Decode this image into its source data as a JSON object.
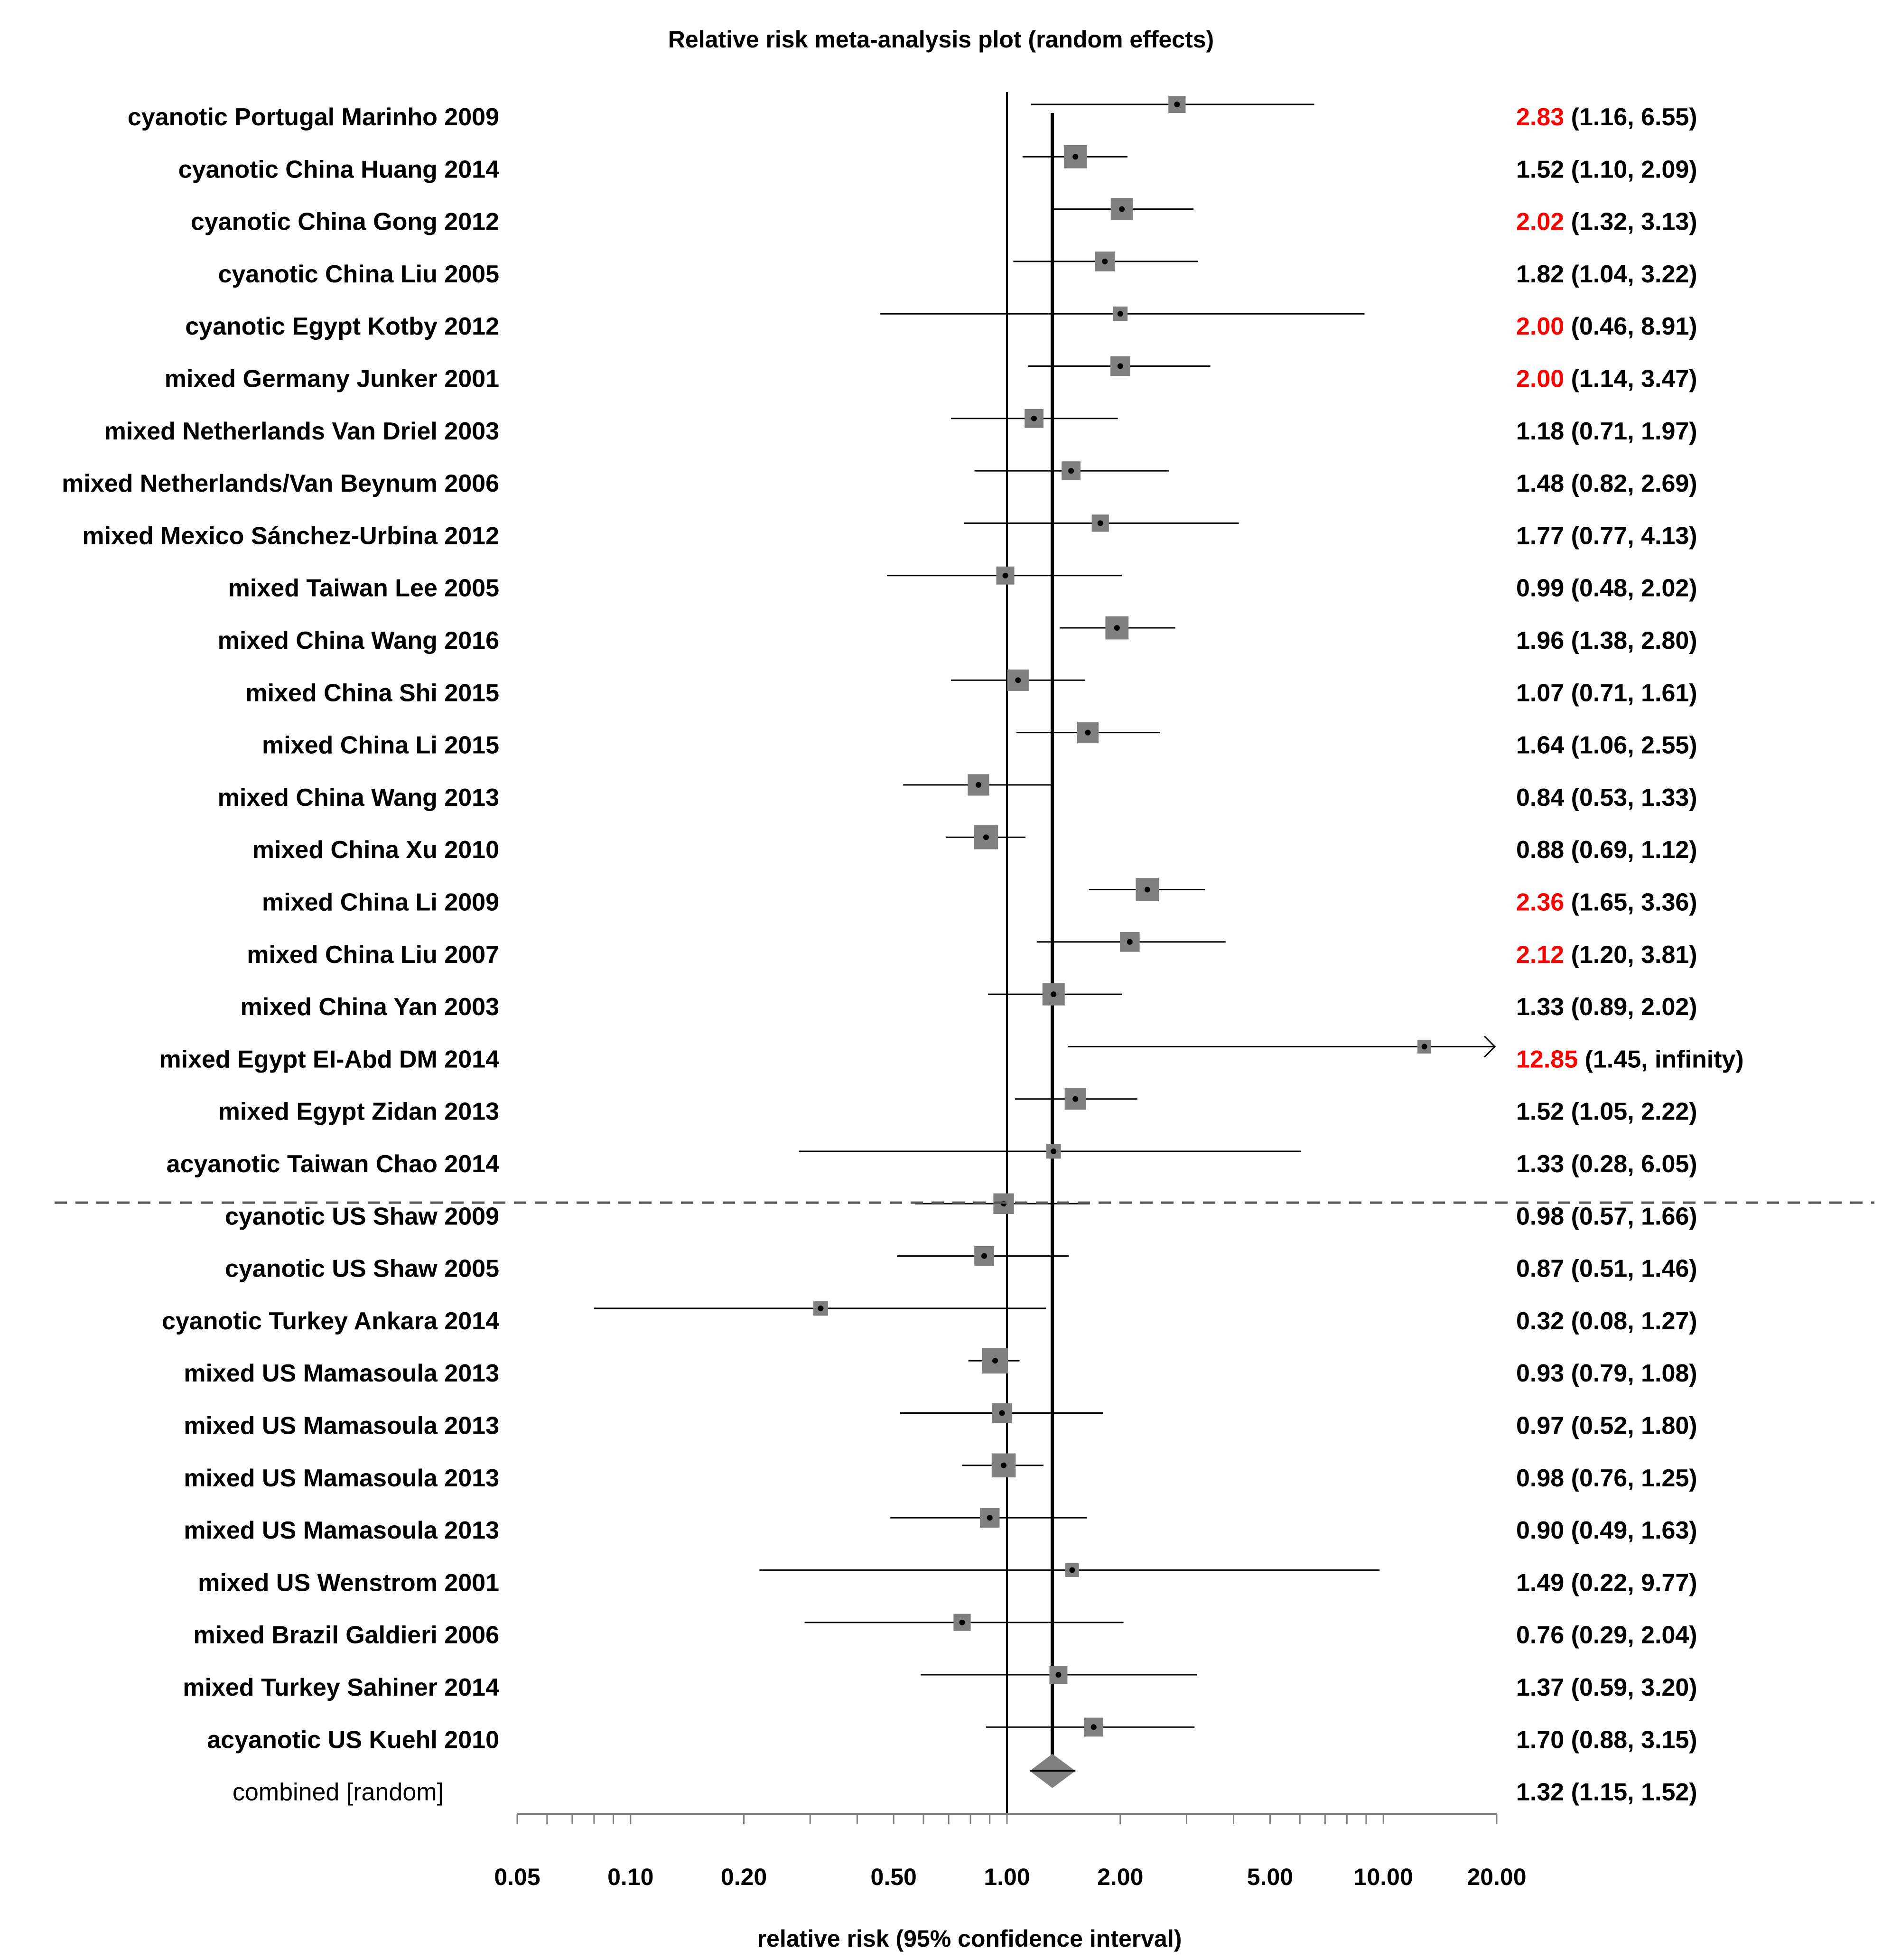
{
  "chart_data": {
    "type": "forest",
    "title": "Relative risk meta-analysis plot (random effects)",
    "xlabel": "relative risk (95% confidence interval)",
    "x_scale": "log",
    "xlim": [
      0.05,
      20
    ],
    "x_ticks": [
      {
        "value": 0.05,
        "label": "0.05"
      },
      {
        "value": 0.1,
        "label": "0.10"
      },
      {
        "value": 0.2,
        "label": "0.20"
      },
      {
        "value": 0.5,
        "label": "0.50"
      },
      {
        "value": 1,
        "label": "1.00"
      },
      {
        "value": 2,
        "label": "2.00"
      },
      {
        "value": 5,
        "label": "5.00"
      },
      {
        "value": 10,
        "label": "10.00"
      },
      {
        "value": 20,
        "label": "20.00"
      }
    ],
    "reference_line": 1,
    "pooled_line": 1.32,
    "colors": {
      "box": "#808080",
      "highlight": "#ff0000",
      "line": "#000000",
      "diamond": "#808080"
    },
    "separator_after_row": 21,
    "studies": [
      {
        "label": "cyanotic Portugal Marinho 2009",
        "rr": 2.83,
        "lo": 1.16,
        "hi": 6.55,
        "rr_text": "2.83",
        "ci_text": "(1.16, 6.55)",
        "highlight": true,
        "weight": 0.45
      },
      {
        "label": "cyanotic China Huang 2014",
        "rr": 1.52,
        "lo": 1.1,
        "hi": 2.09,
        "rr_text": "1.52",
        "ci_text": "(1.10, 2.09)",
        "highlight": false,
        "weight": 0.8
      },
      {
        "label": "cyanotic China Gong 2012",
        "rr": 2.02,
        "lo": 1.32,
        "hi": 3.13,
        "rr_text": "2.02",
        "ci_text": "(1.32, 3.13)",
        "highlight": true,
        "weight": 0.75
      },
      {
        "label": "cyanotic China Liu 2005",
        "rr": 1.82,
        "lo": 1.04,
        "hi": 3.22,
        "rr_text": "1.82",
        "ci_text": "(1.04, 3.22)",
        "highlight": false,
        "weight": 0.6
      },
      {
        "label": "cyanotic Egypt Kotby 2012",
        "rr": 2.0,
        "lo": 0.46,
        "hi": 8.91,
        "rr_text": "2.00",
        "ci_text": "(0.46, 8.91)",
        "highlight": true,
        "weight": 0.3
      },
      {
        "label": "mixed Germany Junker 2001",
        "rr": 2.0,
        "lo": 1.14,
        "hi": 3.47,
        "rr_text": "2.00",
        "ci_text": "(1.14, 3.47)",
        "highlight": true,
        "weight": 0.6
      },
      {
        "label": "mixed Netherlands Van Driel 2003",
        "rr": 1.18,
        "lo": 0.71,
        "hi": 1.97,
        "rr_text": "1.18",
        "ci_text": "(0.71, 1.97)",
        "highlight": false,
        "weight": 0.55
      },
      {
        "label": "mixed Netherlands/Van Beynum 2006",
        "rr": 1.48,
        "lo": 0.82,
        "hi": 2.69,
        "rr_text": "1.48",
        "ci_text": "(0.82, 2.69)",
        "highlight": false,
        "weight": 0.55
      },
      {
        "label": "mixed Mexico Sánchez-Urbina 2012",
        "rr": 1.77,
        "lo": 0.77,
        "hi": 4.13,
        "rr_text": "1.77",
        "ci_text": "(0.77, 4.13)",
        "highlight": false,
        "weight": 0.45
      },
      {
        "label": "mixed Taiwan Lee 2005",
        "rr": 0.99,
        "lo": 0.48,
        "hi": 2.02,
        "rr_text": "0.99",
        "ci_text": "(0.48, 2.02)",
        "highlight": false,
        "weight": 0.5
      },
      {
        "label": "mixed China Wang 2016",
        "rr": 1.96,
        "lo": 1.38,
        "hi": 2.8,
        "rr_text": "1.96",
        "ci_text": "(1.38, 2.80)",
        "highlight": false,
        "weight": 0.8
      },
      {
        "label": "mixed China Shi 2015",
        "rr": 1.07,
        "lo": 0.71,
        "hi": 1.61,
        "rr_text": "1.07",
        "ci_text": "(0.71, 1.61)",
        "highlight": false,
        "weight": 0.7
      },
      {
        "label": "mixed China Li 2015",
        "rr": 1.64,
        "lo": 1.06,
        "hi": 2.55,
        "rr_text": "1.64",
        "ci_text": "(1.06, 2.55)",
        "highlight": false,
        "weight": 0.7
      },
      {
        "label": "mixed China Wang 2013",
        "rr": 0.84,
        "lo": 0.53,
        "hi": 1.33,
        "rr_text": "0.84",
        "ci_text": "(0.53, 1.33)",
        "highlight": false,
        "weight": 0.7
      },
      {
        "label": "mixed China Xu 2010",
        "rr": 0.88,
        "lo": 0.69,
        "hi": 1.12,
        "rr_text": "0.88",
        "ci_text": "(0.69, 1.12)",
        "highlight": false,
        "weight": 0.85
      },
      {
        "label": "mixed China Li 2009",
        "rr": 2.36,
        "lo": 1.65,
        "hi": 3.36,
        "rr_text": "2.36",
        "ci_text": "(1.65, 3.36)",
        "highlight": true,
        "weight": 0.8
      },
      {
        "label": "mixed China Liu 2007",
        "rr": 2.12,
        "lo": 1.2,
        "hi": 3.81,
        "rr_text": "2.12",
        "ci_text": "(1.20, 3.81)",
        "highlight": true,
        "weight": 0.6
      },
      {
        "label": "mixed China Yan 2003",
        "rr": 1.33,
        "lo": 0.89,
        "hi": 2.02,
        "rr_text": "1.33",
        "ci_text": "(0.89, 2.02)",
        "highlight": false,
        "weight": 0.75
      },
      {
        "label": "mixed Egypt EI-Abd DM 2014",
        "rr": 12.85,
        "lo": 1.45,
        "hi": null,
        "rr_text": "12.85",
        "ci_text": "(1.45, infinity)",
        "highlight": true,
        "weight": 0.25
      },
      {
        "label": "mixed Egypt Zidan 2013",
        "rr": 1.52,
        "lo": 1.05,
        "hi": 2.22,
        "rr_text": "1.52",
        "ci_text": "(1.05, 2.22)",
        "highlight": false,
        "weight": 0.7
      },
      {
        "label": "acyanotic Taiwan Chao 2014",
        "rr": 1.33,
        "lo": 0.28,
        "hi": 6.05,
        "rr_text": "1.33",
        "ci_text": "(0.28, 6.05)",
        "highlight": false,
        "weight": 0.3
      },
      {
        "label": "cyanotic US Shaw 2009",
        "rr": 0.98,
        "lo": 0.57,
        "hi": 1.66,
        "rr_text": "0.98",
        "ci_text": "(0.57, 1.66)",
        "highlight": false,
        "weight": 0.65
      },
      {
        "label": "cyanotic US Shaw 2005",
        "rr": 0.87,
        "lo": 0.51,
        "hi": 1.46,
        "rr_text": "0.87",
        "ci_text": "(0.51, 1.46)",
        "highlight": false,
        "weight": 0.6
      },
      {
        "label": "cyanotic Turkey Ankara 2014",
        "rr": 0.32,
        "lo": 0.08,
        "hi": 1.27,
        "rr_text": "0.32",
        "ci_text": "(0.08, 1.27)",
        "highlight": false,
        "weight": 0.3
      },
      {
        "label": "mixed US Mamasoula 2013",
        "rr": 0.93,
        "lo": 0.79,
        "hi": 1.08,
        "rr_text": "0.93",
        "ci_text": "(0.79, 1.08)",
        "highlight": false,
        "weight": 0.95
      },
      {
        "label": "mixed US Mamasoula 2013",
        "rr": 0.97,
        "lo": 0.52,
        "hi": 1.8,
        "rr_text": "0.97",
        "ci_text": "(0.52, 1.80)",
        "highlight": false,
        "weight": 0.6
      },
      {
        "label": "mixed US Mamasoula 2013",
        "rr": 0.98,
        "lo": 0.76,
        "hi": 1.25,
        "rr_text": "0.98",
        "ci_text": "(0.76, 1.25)",
        "highlight": false,
        "weight": 0.85
      },
      {
        "label": "mixed US Mamasoula 2013",
        "rr": 0.9,
        "lo": 0.49,
        "hi": 1.63,
        "rr_text": "0.90",
        "ci_text": "(0.49, 1.63)",
        "highlight": false,
        "weight": 0.6
      },
      {
        "label": "mixed US Wenstrom 2001",
        "rr": 1.49,
        "lo": 0.22,
        "hi": 9.77,
        "rr_text": "1.49",
        "ci_text": "(0.22, 9.77)",
        "highlight": false,
        "weight": 0.25
      },
      {
        "label": "mixed Brazil Galdieri 2006",
        "rr": 0.76,
        "lo": 0.29,
        "hi": 2.04,
        "rr_text": "0.76",
        "ci_text": "(0.29, 2.04)",
        "highlight": false,
        "weight": 0.45
      },
      {
        "label": "mixed Turkey Sahiner 2014",
        "rr": 1.37,
        "lo": 0.59,
        "hi": 3.2,
        "rr_text": "1.37",
        "ci_text": "(0.59, 3.20)",
        "highlight": false,
        "weight": 0.5
      },
      {
        "label": "acyanotic US Kuehl 2010",
        "rr": 1.7,
        "lo": 0.88,
        "hi": 3.15,
        "rr_text": "1.70",
        "ci_text": "(0.88, 3.15)",
        "highlight": false,
        "weight": 0.55
      }
    ],
    "combined": {
      "label": "combined [random]",
      "rr": 1.32,
      "lo": 1.15,
      "hi": 1.52,
      "rr_text": "1.32",
      "ci_text": "(1.15, 1.52)"
    }
  }
}
